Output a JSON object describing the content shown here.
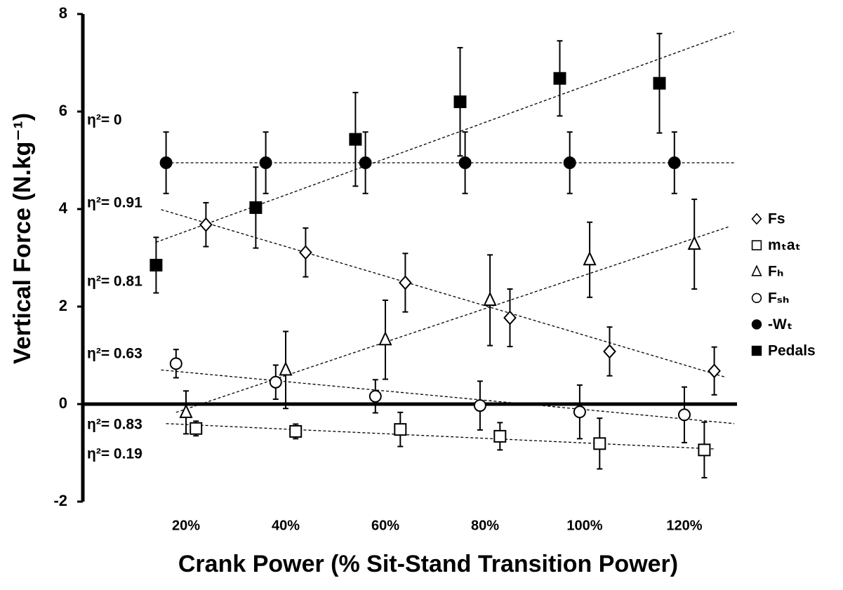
{
  "chart_data": {
    "type": "scatter",
    "x_label": "Crank Power (% Sit-Stand Transition Power)",
    "y_label": "Vertical Force (N.kg⁻¹)",
    "xlim": [
      0,
      140
    ],
    "xticks": [
      {
        "value": 20,
        "label": "20%"
      },
      {
        "value": 40,
        "label": "40%"
      },
      {
        "value": 60,
        "label": "60%"
      },
      {
        "value": 80,
        "label": "80%"
      },
      {
        "value": 100,
        "label": "100%"
      },
      {
        "value": 120,
        "label": "120%"
      }
    ],
    "ylim": [
      -2,
      8
    ],
    "yticks": [
      -2,
      0,
      2,
      4,
      6,
      8
    ],
    "annotations": [
      "η²= 0",
      "η²= 0.91",
      "η²= 0.81",
      "η²= 0.63",
      "η²= 0.83",
      "η²= 0.19"
    ],
    "legend": "right",
    "series": [
      {
        "name": "Fs",
        "marker": "diamond",
        "color": "#ffffff",
        "x": [
          24,
          44,
          64,
          85,
          105,
          126
        ],
        "values": [
          3.68,
          3.11,
          2.49,
          1.77,
          1.08,
          0.68
        ],
        "errors": [
          0.45,
          0.5,
          0.6,
          0.59,
          0.5,
          0.49
        ],
        "trend": {
          "x": [
            15,
            128
          ],
          "y": [
            3.99,
            0.56
          ]
        }
      },
      {
        "name": "mₜaₜ",
        "marker": "square",
        "color": "#ffffff",
        "x": [
          22,
          42,
          63,
          83,
          103,
          124
        ],
        "values": [
          -0.5,
          -0.56,
          -0.52,
          -0.66,
          -0.81,
          -0.94
        ],
        "errors": [
          0.15,
          0.15,
          0.35,
          0.28,
          0.52,
          0.57
        ],
        "trend": {
          "x": [
            16,
            126
          ],
          "y": [
            -0.4,
            -0.92
          ]
        }
      },
      {
        "name": "Fₕ",
        "marker": "triangle",
        "color": "#ffffff",
        "x": [
          20,
          40,
          60,
          81,
          101,
          122
        ],
        "values": [
          -0.17,
          0.7,
          1.32,
          2.13,
          2.96,
          3.28
        ],
        "errors": [
          0.44,
          0.79,
          0.81,
          0.93,
          0.77,
          0.92
        ],
        "trend": {
          "x": [
            18,
            129
          ],
          "y": [
            -0.17,
            3.64
          ]
        }
      },
      {
        "name": "Fₛₕ",
        "marker": "circle",
        "color": "#ffffff",
        "x": [
          18,
          38,
          58,
          79,
          99,
          120
        ],
        "values": [
          0.83,
          0.45,
          0.16,
          -0.03,
          -0.16,
          -0.22
        ],
        "errors": [
          0.29,
          0.35,
          0.34,
          0.5,
          0.55,
          0.57
        ],
        "trend": {
          "x": [
            15,
            130
          ],
          "y": [
            0.7,
            -0.4
          ]
        }
      },
      {
        "name": "-Wₜ",
        "marker": "circle",
        "color": "#000000",
        "x": [
          16,
          36,
          56,
          76,
          97,
          118
        ],
        "values": [
          4.95,
          4.95,
          4.95,
          4.95,
          4.95,
          4.95
        ],
        "errors": [
          0.63,
          0.63,
          0.63,
          0.63,
          0.63,
          0.63
        ],
        "trend": {
          "x": [
            16,
            130
          ],
          "y": [
            4.95,
            4.95
          ]
        }
      },
      {
        "name": "Pedals",
        "marker": "square",
        "color": "#000000",
        "x": [
          14,
          34,
          54,
          75,
          95,
          115
        ],
        "values": [
          2.85,
          4.03,
          5.43,
          6.2,
          6.68,
          6.58
        ],
        "errors": [
          0.57,
          0.83,
          0.96,
          1.11,
          0.77,
          1.02
        ],
        "trend": {
          "x": [
            14,
            130
          ],
          "y": [
            3.32,
            7.64
          ]
        }
      }
    ]
  }
}
